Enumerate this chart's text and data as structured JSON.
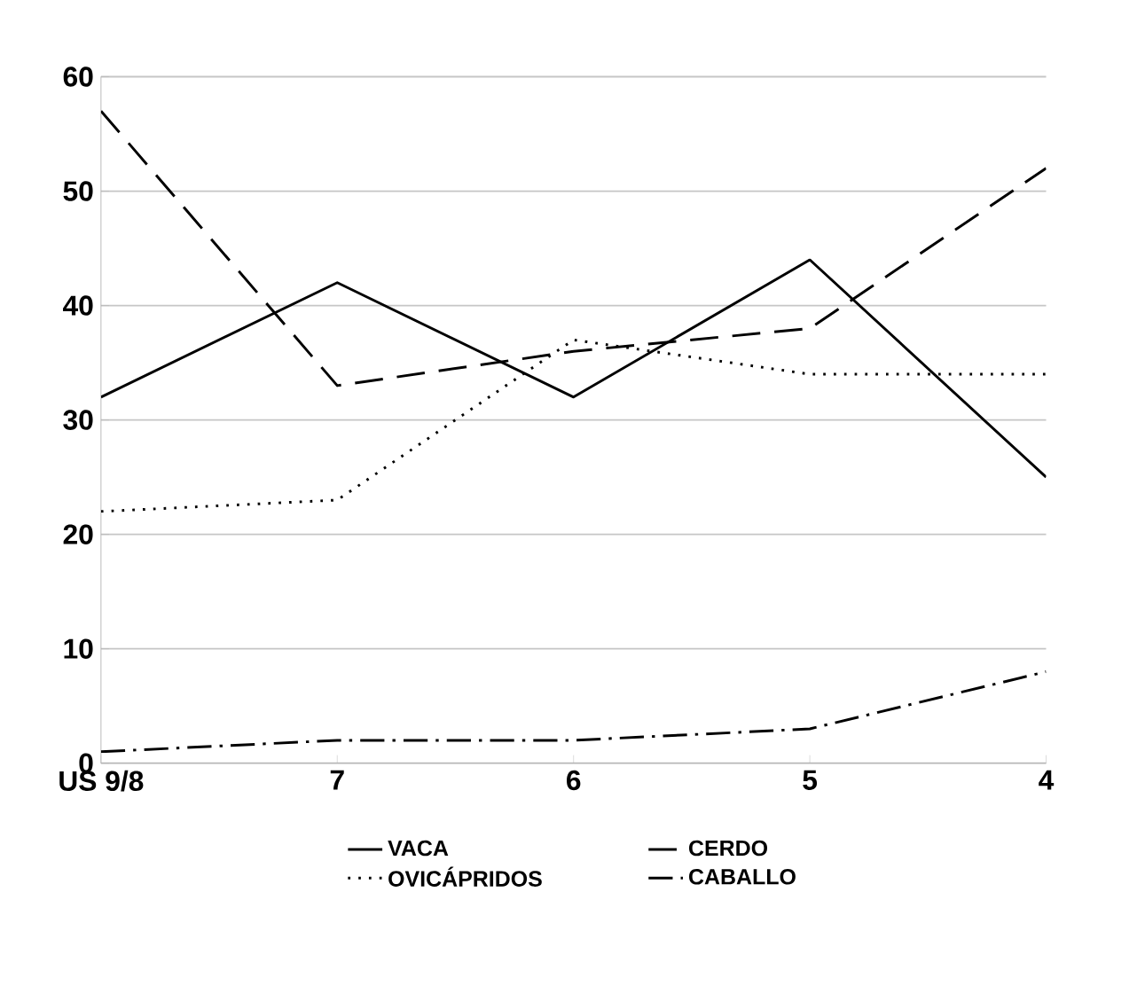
{
  "chart_data": {
    "type": "line",
    "categories": [
      "US 9/8",
      "7",
      "6",
      "5",
      "4"
    ],
    "series": [
      {
        "name": "VACA",
        "color": "#000000",
        "line_style": "solid",
        "values": [
          32,
          42,
          32,
          44,
          25
        ]
      },
      {
        "name": "CERDO",
        "color": "#000000",
        "line_style": "dashed",
        "values": [
          57,
          33,
          36,
          38,
          52
        ]
      },
      {
        "name": "OVICÁPRIDOS",
        "color": "#000000",
        "line_style": "dotted",
        "values": [
          22,
          23,
          37,
          34,
          34
        ]
      },
      {
        "name": "CABALLO",
        "color": "#000000",
        "line_style": "dashdot",
        "values": [
          1,
          2,
          2,
          3,
          8
        ]
      }
    ],
    "ylim": [
      0,
      60
    ],
    "yticks": [
      0,
      10,
      20,
      30,
      40,
      50,
      60
    ],
    "grid": "y",
    "legend": "bottom",
    "marker": "none"
  }
}
